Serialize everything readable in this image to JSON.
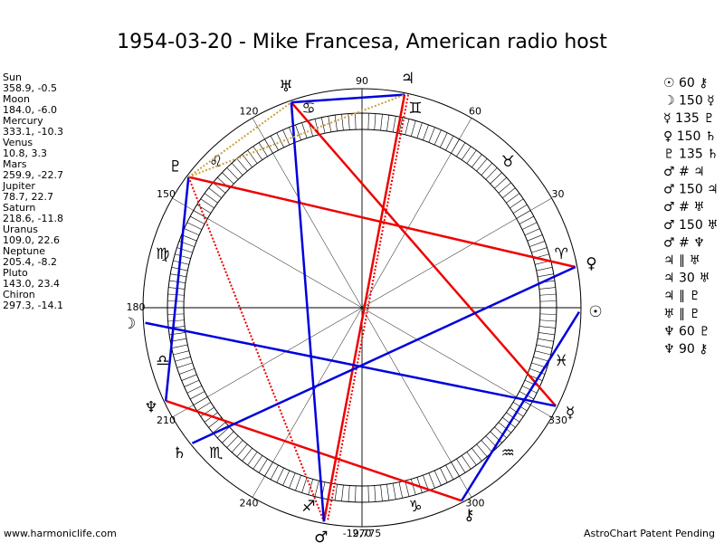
{
  "title": "1954-03-20 - Mike Francesa, American radio host",
  "planets": [
    {
      "name": "Sun",
      "coords": "358.9, -0.5",
      "glyph": "☉"
    },
    {
      "name": "Moon",
      "coords": "184.0, -6.0",
      "glyph": "☽"
    },
    {
      "name": "Mercury",
      "coords": "333.1, -10.3",
      "glyph": "☿"
    },
    {
      "name": "Venus",
      "coords": "10.8, 3.3",
      "glyph": "♀"
    },
    {
      "name": "Mars",
      "coords": "259.9, -22.7",
      "glyph": "♂"
    },
    {
      "name": "Jupiter",
      "coords": "78.7, 22.7",
      "glyph": "♃"
    },
    {
      "name": "Saturn",
      "coords": "218.6, -11.8",
      "glyph": "♄"
    },
    {
      "name": "Uranus",
      "coords": "109.0, 22.6",
      "glyph": "♅"
    },
    {
      "name": "Neptune",
      "coords": "205.4, -8.2",
      "glyph": "♆"
    },
    {
      "name": "Pluto",
      "coords": "143.0, 23.4",
      "glyph": "♇"
    },
    {
      "name": "Chiron",
      "coords": "297.3, -14.1",
      "glyph": "⚷"
    }
  ],
  "aspects": [
    "☉ 60 ⚷",
    "☽ 150 ☿",
    "☿ 135 ♇",
    "♀ 150 ♄",
    "♇ 135 ♄",
    "♂ # ♃",
    "♂ 150 ♃",
    "♂ # ♅",
    "♂ 150 ♅",
    "♂ # ♆",
    "♃ ∥ ♅",
    "♃ 30 ♅",
    "♃ ∥ ♇",
    "♅ ∥ ♇",
    "♆ 60 ♇",
    "♆ 90 ⚷"
  ],
  "signs": [
    "♈",
    "♉",
    "♊",
    "♋",
    "♌",
    "♍",
    "♎",
    "♏",
    "♐",
    "♑",
    "♒",
    "♓"
  ],
  "degree_ticks": [
    30,
    60,
    90,
    120,
    150,
    180,
    210,
    240,
    270,
    300,
    330
  ],
  "score": "-19,775",
  "footer_left": "www.harmoniclife.com",
  "footer_right": "AstroChart Patent Pending"
}
